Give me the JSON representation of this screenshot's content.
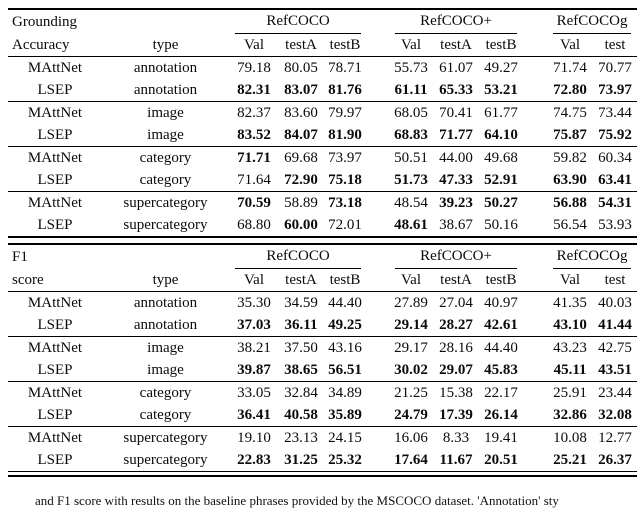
{
  "caption": {
    "fragment": "and F1 score with  results on the baseline phrases provided by the MSCOCO dataset. 'Annotation' sty"
  },
  "tables": [
    {
      "title_line1": "Grounding",
      "title_line2": "Accuracy",
      "type_label": "type",
      "groups": [
        "RefCOCO",
        "RefCOCO+",
        "RefCOCOg"
      ],
      "subcols": [
        "Val",
        "testA",
        "testB",
        "Val",
        "testA",
        "testB",
        "Val",
        "test"
      ],
      "rows": [
        {
          "method": "MAttNet",
          "type": "annotation",
          "values": [
            "79.18",
            "80.05",
            "78.71",
            "55.73",
            "61.07",
            "49.27",
            "71.74",
            "70.77"
          ],
          "bold": [
            false,
            false,
            false,
            false,
            false,
            false,
            false,
            false
          ]
        },
        {
          "method": "LSEP",
          "type": "annotation",
          "values": [
            "82.31",
            "83.07",
            "81.76",
            "61.11",
            "65.33",
            "53.21",
            "72.80",
            "73.97"
          ],
          "bold": [
            true,
            true,
            true,
            true,
            true,
            true,
            true,
            true
          ]
        },
        {
          "method": "MAttNet",
          "type": "image",
          "values": [
            "82.37",
            "83.60",
            "79.97",
            "68.05",
            "70.41",
            "61.77",
            "74.75",
            "73.44"
          ],
          "bold": [
            false,
            false,
            false,
            false,
            false,
            false,
            false,
            false
          ]
        },
        {
          "method": "LSEP",
          "type": "image",
          "values": [
            "83.52",
            "84.07",
            "81.90",
            "68.83",
            "71.77",
            "64.10",
            "75.87",
            "75.92"
          ],
          "bold": [
            true,
            true,
            true,
            true,
            true,
            true,
            true,
            true
          ]
        },
        {
          "method": "MAttNet",
          "type": "category",
          "values": [
            "71.71",
            "69.68",
            "73.97",
            "50.51",
            "44.00",
            "49.68",
            "59.82",
            "60.34"
          ],
          "bold": [
            true,
            false,
            false,
            false,
            false,
            false,
            false,
            false
          ]
        },
        {
          "method": "LSEP",
          "type": "category",
          "values": [
            "71.64",
            "72.90",
            "75.18",
            "51.73",
            "47.33",
            "52.91",
            "63.90",
            "63.41"
          ],
          "bold": [
            false,
            true,
            true,
            true,
            true,
            true,
            true,
            true
          ]
        },
        {
          "method": "MAttNet",
          "type": "supercategory",
          "values": [
            "70.59",
            "58.89",
            "73.18",
            "48.54",
            "39.23",
            "50.27",
            "56.88",
            "54.31"
          ],
          "bold": [
            true,
            false,
            true,
            false,
            true,
            true,
            true,
            true
          ]
        },
        {
          "method": "LSEP",
          "type": "supercategory",
          "values": [
            "68.80",
            "60.00",
            "72.01",
            "48.61",
            "38.67",
            "50.16",
            "56.54",
            "53.93"
          ],
          "bold": [
            false,
            true,
            false,
            true,
            false,
            false,
            false,
            false
          ]
        }
      ]
    },
    {
      "title_line1": "F1",
      "title_line2": "score",
      "type_label": "type",
      "groups": [
        "RefCOCO",
        "RefCOCO+",
        "RefCOCOg"
      ],
      "subcols": [
        "Val",
        "testA",
        "testB",
        "Val",
        "testA",
        "testB",
        "Val",
        "test"
      ],
      "rows": [
        {
          "method": "MAttNet",
          "type": "annotation",
          "values": [
            "35.30",
            "34.59",
            "44.40",
            "27.89",
            "27.04",
            "40.97",
            "41.35",
            "40.03"
          ],
          "bold": [
            false,
            false,
            false,
            false,
            false,
            false,
            false,
            false
          ]
        },
        {
          "method": "LSEP",
          "type": "annotation",
          "values": [
            "37.03",
            "36.11",
            "49.25",
            "29.14",
            "28.27",
            "42.61",
            "43.10",
            "41.44"
          ],
          "bold": [
            true,
            true,
            true,
            true,
            true,
            true,
            true,
            true
          ]
        },
        {
          "method": "MAttNet",
          "type": "image",
          "values": [
            "38.21",
            "37.50",
            "43.16",
            "29.17",
            "28.16",
            "44.40",
            "43.23",
            "42.75"
          ],
          "bold": [
            false,
            false,
            false,
            false,
            false,
            false,
            false,
            false
          ]
        },
        {
          "method": "LSEP",
          "type": "image",
          "values": [
            "39.87",
            "38.65",
            "56.51",
            "30.02",
            "29.07",
            "45.83",
            "45.11",
            "43.51"
          ],
          "bold": [
            true,
            true,
            true,
            true,
            true,
            true,
            true,
            true
          ]
        },
        {
          "method": "MAttNet",
          "type": "category",
          "values": [
            "33.05",
            "32.84",
            "34.89",
            "21.25",
            "15.38",
            "22.17",
            "25.91",
            "23.44"
          ],
          "bold": [
            false,
            false,
            false,
            false,
            false,
            false,
            false,
            false
          ]
        },
        {
          "method": "LSEP",
          "type": "category",
          "values": [
            "36.41",
            "40.58",
            "35.89",
            "24.79",
            "17.39",
            "26.14",
            "32.86",
            "32.08"
          ],
          "bold": [
            true,
            true,
            true,
            true,
            true,
            true,
            true,
            true
          ]
        },
        {
          "method": "MAttNet",
          "type": "supercategory",
          "values": [
            "19.10",
            "23.13",
            "24.15",
            "16.06",
            "8.33",
            "19.41",
            "10.08",
            "12.77"
          ],
          "bold": [
            false,
            false,
            false,
            false,
            false,
            false,
            false,
            false
          ]
        },
        {
          "method": "LSEP",
          "type": "supercategory",
          "values": [
            "22.83",
            "31.25",
            "25.32",
            "17.64",
            "11.67",
            "20.51",
            "25.21",
            "26.37"
          ],
          "bold": [
            true,
            true,
            true,
            true,
            true,
            true,
            true,
            true
          ]
        }
      ]
    }
  ]
}
